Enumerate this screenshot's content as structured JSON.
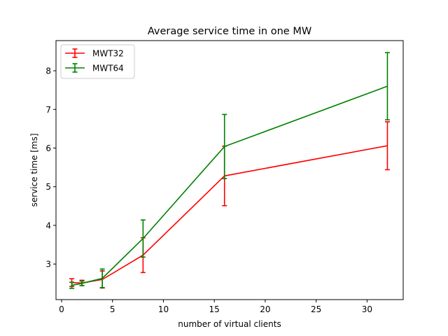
{
  "chart_data": {
    "type": "line",
    "title": "Average service time in one MW",
    "xlabel": "number of virtual clients",
    "ylabel": "service time [ms]",
    "xlim": [
      -0.55,
      33.55
    ],
    "ylim": [
      2.08,
      8.78
    ],
    "x_ticks": [
      0,
      5,
      10,
      15,
      20,
      25,
      30
    ],
    "y_ticks": [
      3,
      4,
      5,
      6,
      7,
      8
    ],
    "grid": false,
    "legend_position": "top-left",
    "x": [
      1,
      2,
      4,
      8,
      16,
      32
    ],
    "series": [
      {
        "name": "MWT32",
        "color": "#ff0000",
        "values": [
          2.52,
          2.51,
          2.6,
          3.23,
          5.28,
          6.06
        ],
        "error": [
          0.1,
          0.07,
          0.22,
          0.45,
          0.77,
          0.62
        ]
      },
      {
        "name": "MWT64",
        "color": "#008000",
        "values": [
          2.45,
          2.5,
          2.63,
          3.66,
          6.04,
          7.6
        ],
        "error": [
          0.08,
          0.06,
          0.24,
          0.48,
          0.83,
          0.87
        ]
      }
    ]
  }
}
